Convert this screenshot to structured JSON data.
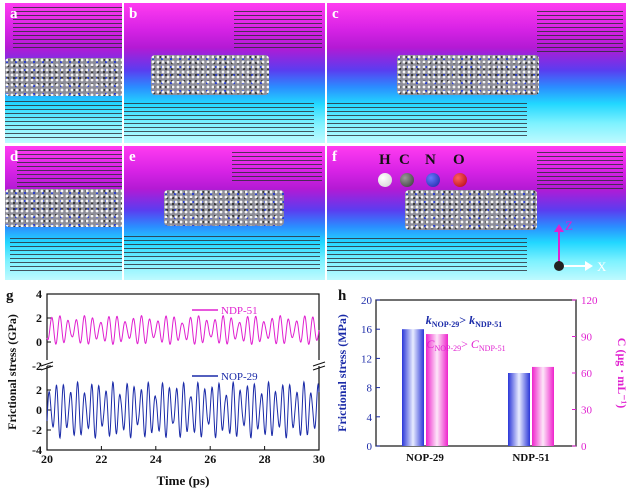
{
  "panels": [
    {
      "label": "a"
    },
    {
      "label": "b"
    },
    {
      "label": "c"
    },
    {
      "label": "d"
    },
    {
      "label": "e"
    },
    {
      "label": "f"
    }
  ],
  "atom_legend": [
    {
      "symbol": "H",
      "color": "#f2f2f2"
    },
    {
      "symbol": "C",
      "color": "#555555"
    },
    {
      "symbol": "N",
      "color": "#2b3ccf"
    },
    {
      "symbol": "O",
      "color": "#e0101a"
    }
  ],
  "axes_labels": {
    "z": "Z",
    "x": "X"
  },
  "chart_data": [
    {
      "panel": "g",
      "type": "line",
      "xlabel": "Time (ps)",
      "ylabel": "Frictional stress (GPa)",
      "xlim": [
        20,
        30
      ],
      "x_ticks": [
        "20",
        "22",
        "24",
        "26",
        "28",
        "30"
      ],
      "upper_ylim": [
        -2,
        4
      ],
      "upper_y_ticks": [
        "-2",
        "0",
        "2",
        "4"
      ],
      "lower_ylim": [
        -4,
        4
      ],
      "lower_y_ticks": [
        "-4",
        "-2",
        "0",
        "2"
      ],
      "series": [
        {
          "name": "NDP-51",
          "color": "#e020d0",
          "panel": "upper",
          "baseline": 1.0,
          "amplitude": 1.2,
          "period_ps": 0.3,
          "envelope_period_ps": 1.02
        },
        {
          "name": "NOP-29",
          "color": "#1a2aa8",
          "panel": "lower",
          "baseline": 0.0,
          "amplitude": 2.8,
          "period_ps": 0.26,
          "envelope_period_ps": 0.64
        }
      ]
    },
    {
      "panel": "h",
      "type": "bar",
      "categories": [
        "NOP-29",
        "NDP-51"
      ],
      "series": [
        {
          "name": "Frictional stress",
          "axis": "left",
          "color": "#3344dd",
          "values": [
            16.0,
            10.0
          ]
        },
        {
          "name": "C",
          "axis": "right",
          "color": "#ee22cc",
          "values": [
            92,
            65
          ]
        }
      ],
      "ylabel_left": "Frictional stress (MPa)",
      "ylabel_right": "C (μg · mL⁻¹)",
      "ylim_left": [
        0,
        20
      ],
      "ylim_right": [
        0,
        120
      ],
      "left_ticks": [
        "0",
        "4",
        "8",
        "12",
        "16",
        "20"
      ],
      "right_ticks": [
        "0",
        "30",
        "60",
        "90",
        "120"
      ],
      "annotations": [
        {
          "k": "k",
          "a": "NOP-29",
          "rel": "> ",
          "b": "NDP-51",
          "color": "#1a2aa8"
        },
        {
          "k": "C",
          "a": "NOP-29",
          "rel": "> ",
          "b": "NDP-51",
          "color": "#e020d0"
        }
      ]
    }
  ]
}
